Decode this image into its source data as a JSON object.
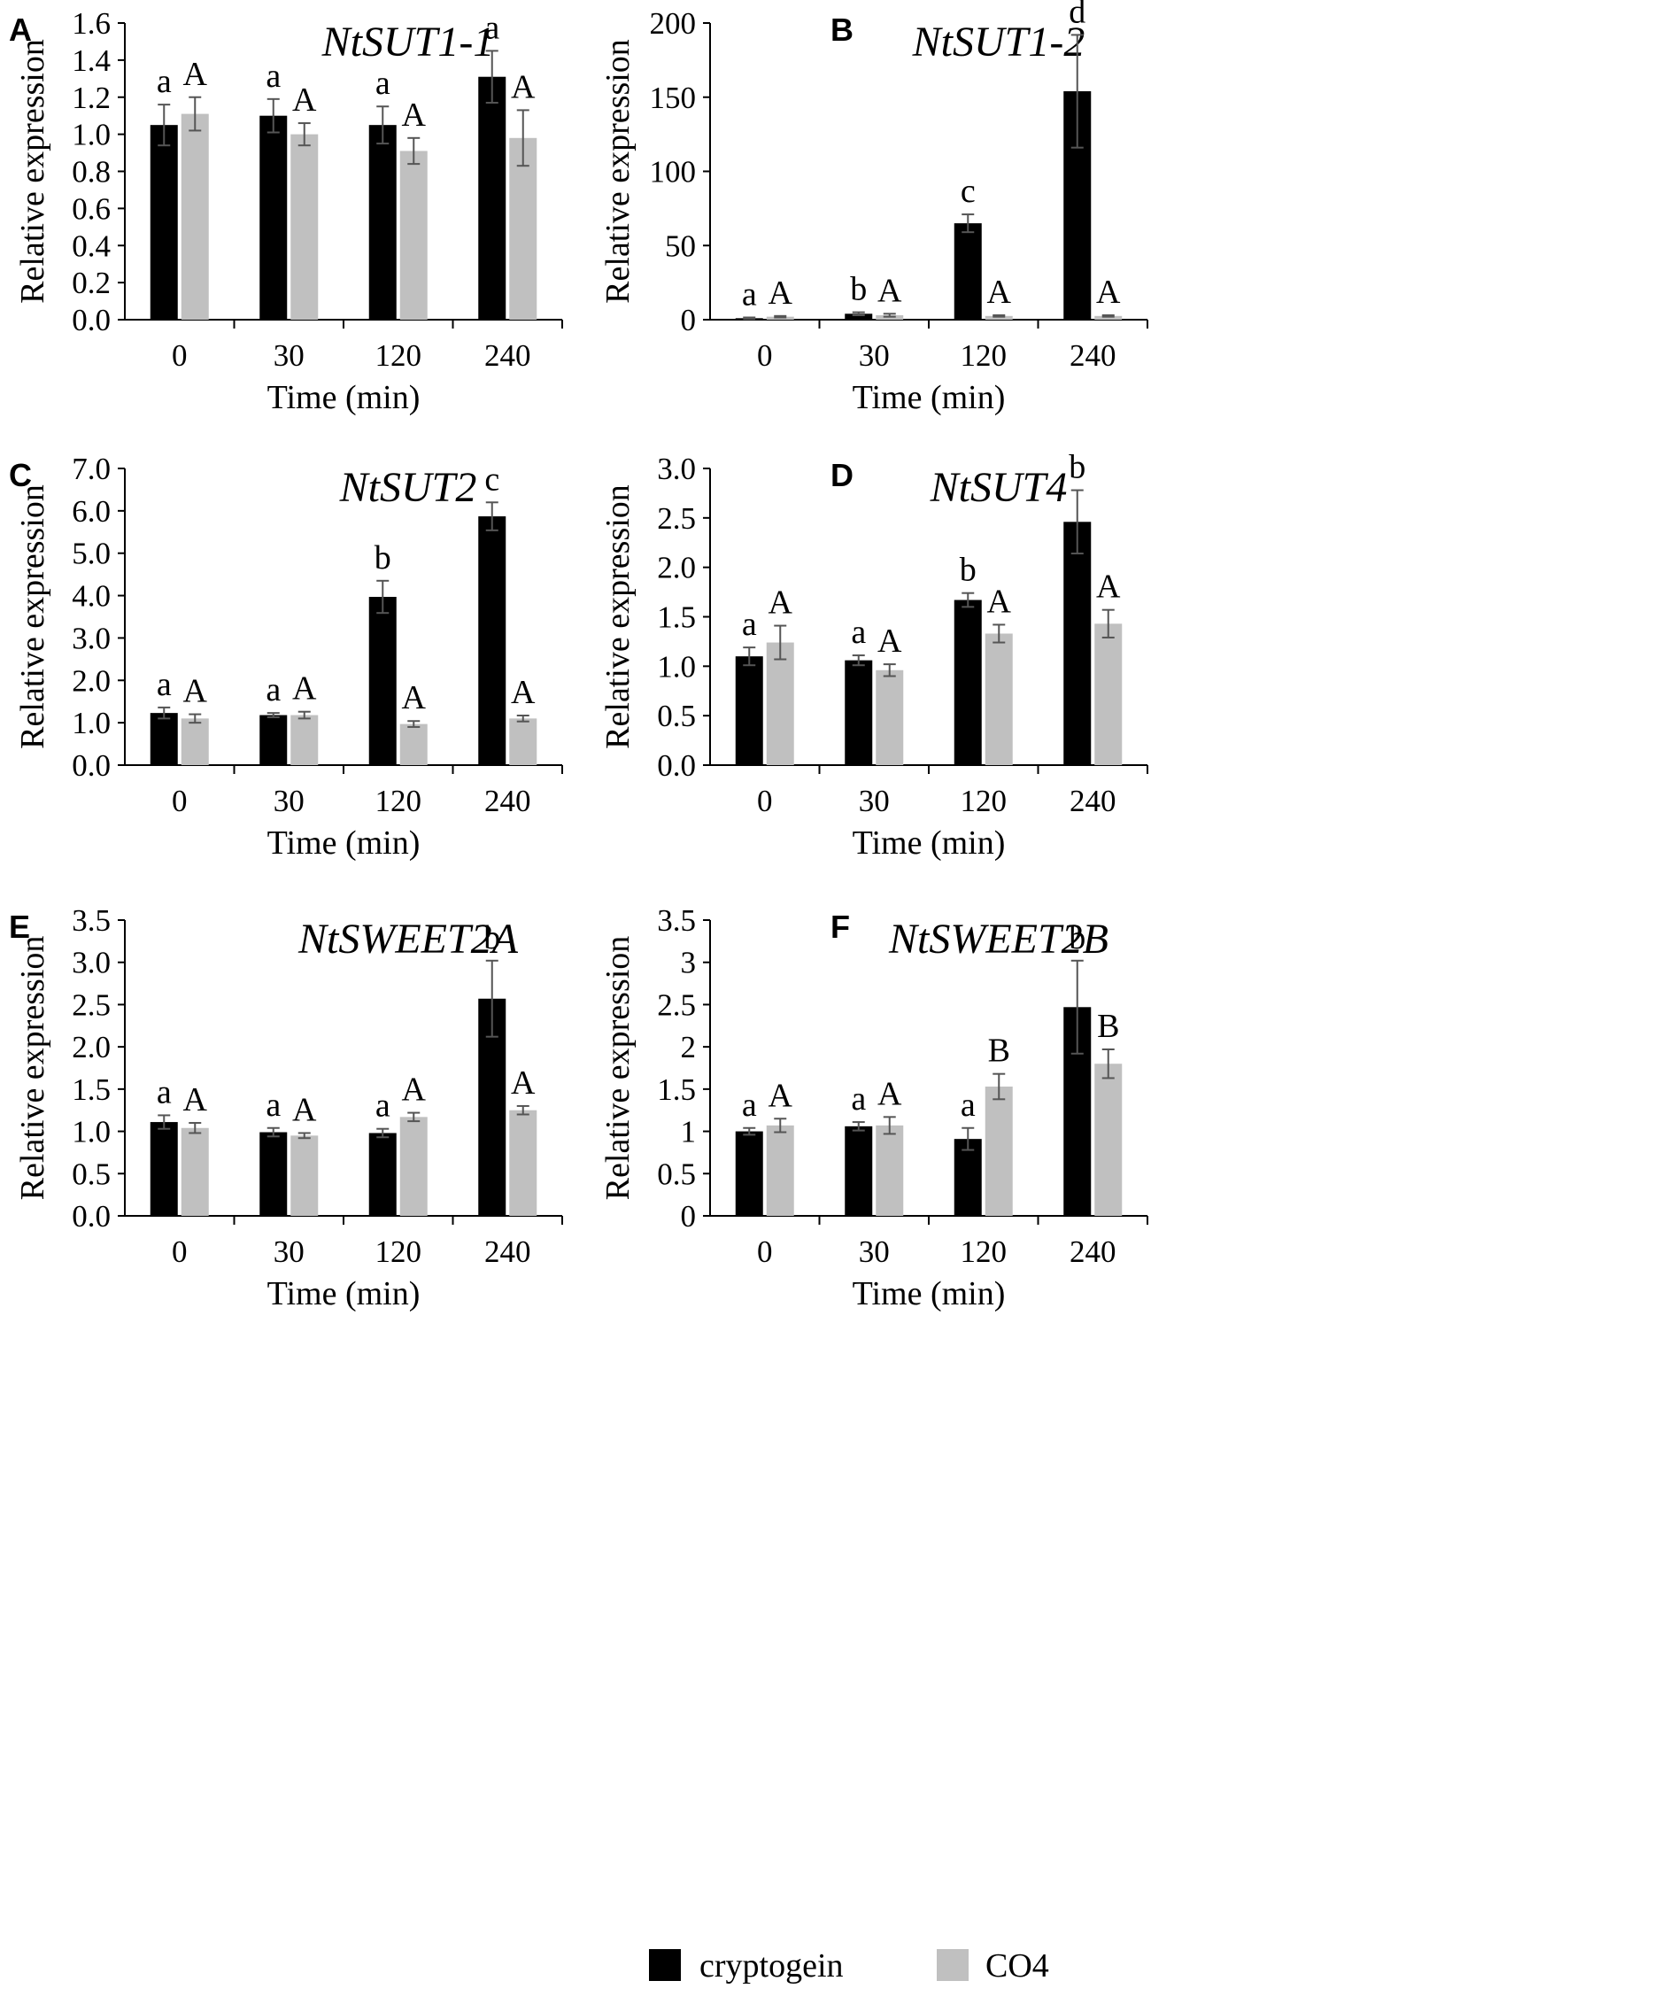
{
  "legend": [
    {
      "label": "cryptogein",
      "color": "#000000"
    },
    {
      "label": "CO4",
      "color": "#c0c0c0"
    }
  ],
  "chart_data": [
    {
      "panel": "A",
      "type": "bar",
      "title": "NtSUT1-1",
      "xlabel": "Time  (min)",
      "ylabel": "Relative  expression",
      "categories": [
        "0",
        "30",
        "120",
        "240"
      ],
      "ylim": [
        0,
        1.6
      ],
      "yticks": [
        "0.0",
        "0.2",
        "0.4",
        "0.6",
        "0.8",
        "1.0",
        "1.2",
        "1.4",
        "1.6"
      ],
      "series": [
        {
          "name": "cryptogein",
          "values": [
            1.05,
            1.1,
            1.05,
            1.31
          ],
          "errors": [
            0.11,
            0.09,
            0.1,
            0.14
          ],
          "labels": [
            "a",
            "a",
            "a",
            "a"
          ]
        },
        {
          "name": "CO4",
          "values": [
            1.11,
            1.0,
            0.91,
            0.98
          ],
          "errors": [
            0.09,
            0.06,
            0.07,
            0.15
          ],
          "labels": [
            "A",
            "A",
            "A",
            "A"
          ]
        }
      ]
    },
    {
      "panel": "B",
      "type": "bar",
      "title": "NtSUT1-2",
      "xlabel": "Time  (min)",
      "ylabel": "Relative  expression",
      "categories": [
        "0",
        "30",
        "120",
        "240"
      ],
      "ylim": [
        0,
        200
      ],
      "yticks": [
        "0",
        "50",
        "100",
        "150",
        "200"
      ],
      "series": [
        {
          "name": "cryptogein",
          "values": [
            1,
            4,
            65,
            154
          ],
          "errors": [
            0.5,
            1,
            6,
            38
          ],
          "labels": [
            "a",
            "b",
            "c",
            "d"
          ]
        },
        {
          "name": "CO4",
          "values": [
            2,
            3,
            2.5,
            2.5
          ],
          "errors": [
            0.5,
            1,
            0.5,
            0.5
          ],
          "labels": [
            "A",
            "A",
            "A",
            "A"
          ]
        }
      ]
    },
    {
      "panel": "C",
      "type": "bar",
      "title": "NtSUT2",
      "xlabel": "Time  (min)",
      "ylabel": "Relative  expression",
      "categories": [
        "0",
        "30",
        "120",
        "240"
      ],
      "ylim": [
        0,
        7.0
      ],
      "yticks": [
        "0.0",
        "1.0",
        "2.0",
        "3.0",
        "4.0",
        "5.0",
        "6.0",
        "7.0"
      ],
      "series": [
        {
          "name": "cryptogein",
          "values": [
            1.23,
            1.18,
            3.97,
            5.87
          ],
          "errors": [
            0.13,
            0.05,
            0.38,
            0.33
          ],
          "labels": [
            "a",
            "a",
            "b",
            "c"
          ]
        },
        {
          "name": "CO4",
          "values": [
            1.1,
            1.18,
            0.97,
            1.1
          ],
          "errors": [
            0.1,
            0.08,
            0.07,
            0.07
          ],
          "labels": [
            "A",
            "A",
            "A",
            "A"
          ]
        }
      ]
    },
    {
      "panel": "D",
      "type": "bar",
      "title": "NtSUT4",
      "xlabel": "Time  (min)",
      "ylabel": "Relative  expression",
      "categories": [
        "0",
        "30",
        "120",
        "240"
      ],
      "ylim": [
        0,
        3.0
      ],
      "yticks": [
        "0.0",
        "0.5",
        "1.0",
        "1.5",
        "2.0",
        "2.5",
        "3.0"
      ],
      "series": [
        {
          "name": "cryptogein",
          "values": [
            1.1,
            1.06,
            1.67,
            2.46
          ],
          "errors": [
            0.09,
            0.05,
            0.07,
            0.32
          ],
          "labels": [
            "a",
            "a",
            "b",
            "b"
          ]
        },
        {
          "name": "CO4",
          "values": [
            1.24,
            0.96,
            1.33,
            1.43
          ],
          "errors": [
            0.17,
            0.06,
            0.09,
            0.14
          ],
          "labels": [
            "A",
            "A",
            "A",
            "A"
          ]
        }
      ]
    },
    {
      "panel": "E",
      "type": "bar",
      "title": "NtSWEET2A",
      "xlabel": "Time  (min)",
      "ylabel": "Relative  expression",
      "categories": [
        "0",
        "30",
        "120",
        "240"
      ],
      "ylim": [
        0,
        3.5
      ],
      "yticks": [
        "0.0",
        "0.5",
        "1.0",
        "1.5",
        "2.0",
        "2.5",
        "3.0",
        "3.5"
      ],
      "series": [
        {
          "name": "cryptogein",
          "values": [
            1.11,
            0.99,
            0.98,
            2.57
          ],
          "errors": [
            0.08,
            0.05,
            0.05,
            0.45
          ],
          "labels": [
            "a",
            "a",
            "a",
            "b"
          ]
        },
        {
          "name": "CO4",
          "values": [
            1.04,
            0.95,
            1.17,
            1.25
          ],
          "errors": [
            0.06,
            0.03,
            0.05,
            0.05
          ],
          "labels": [
            "A",
            "A",
            "A",
            "A"
          ]
        }
      ]
    },
    {
      "panel": "F",
      "type": "bar",
      "title": "NtSWEET2B",
      "xlabel": "Time  (min)",
      "ylabel": "Relative  expression",
      "categories": [
        "0",
        "30",
        "120",
        "240"
      ],
      "ylim": [
        0,
        3.5
      ],
      "yticks": [
        "0",
        "0.5",
        "1",
        "1.5",
        "2",
        "2.5",
        "3",
        "3.5"
      ],
      "series": [
        {
          "name": "cryptogein",
          "values": [
            1.0,
            1.06,
            0.91,
            2.47
          ],
          "errors": [
            0.04,
            0.05,
            0.13,
            0.55
          ],
          "labels": [
            "a",
            "a",
            "a",
            "b"
          ]
        },
        {
          "name": "CO4",
          "values": [
            1.07,
            1.07,
            1.53,
            1.8
          ],
          "errors": [
            0.08,
            0.1,
            0.15,
            0.17
          ],
          "labels": [
            "A",
            "A",
            "B",
            "B"
          ]
        }
      ]
    }
  ]
}
